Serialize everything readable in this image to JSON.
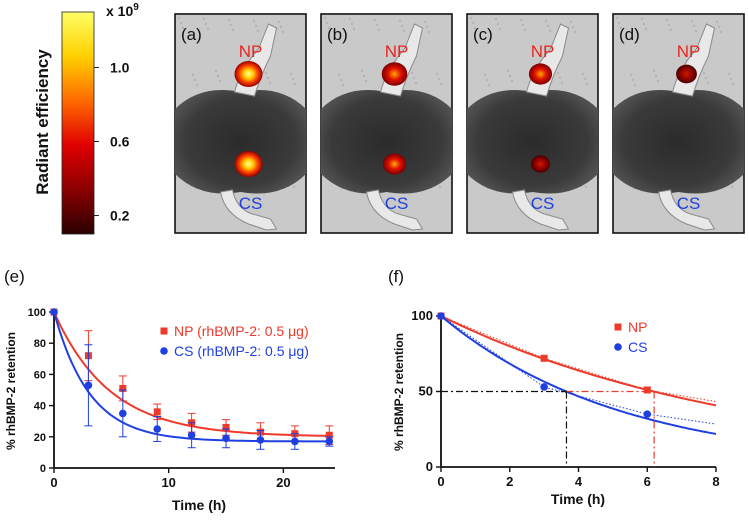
{
  "colorbar": {
    "title": "Radiant efficiency",
    "multiplier": "x 10",
    "exponent": "9",
    "ticks": [
      {
        "label": "1.0",
        "value": 1.0
      },
      {
        "label": "0.6",
        "value": 0.6
      },
      {
        "label": "0.2",
        "value": 0.2
      }
    ],
    "range": [
      0.1,
      1.3
    ],
    "colors": [
      "#2a0000",
      "#8b0000",
      "#e00000",
      "#ff6a00",
      "#ffd000",
      "#ffff66"
    ]
  },
  "images": [
    {
      "label": "(a)",
      "np_label": "NP",
      "cs_label": "CS",
      "np_spot": 1.0,
      "cs_spot": 1.0
    },
    {
      "label": "(b)",
      "np_label": "NP",
      "cs_label": "CS",
      "np_spot": 0.85,
      "cs_spot": 0.7
    },
    {
      "label": "(c)",
      "np_label": "NP",
      "cs_label": "CS",
      "np_spot": 0.7,
      "cs_spot": 0.45
    },
    {
      "label": "(d)",
      "np_label": "NP",
      "cs_label": "CS",
      "np_spot": 0.55,
      "cs_spot": 0.0
    }
  ],
  "label_colors": {
    "np": "#e8261f",
    "cs": "#1f3fe0"
  },
  "chart_data": [
    {
      "panel": "(e)",
      "type": "line",
      "xlabel": "Time (h)",
      "ylabel": "% rhBMP-2 retention",
      "xlim": [
        0,
        24.5
      ],
      "ylim": [
        0,
        100
      ],
      "xticks": [
        0,
        10,
        20
      ],
      "yticks": [
        0,
        20,
        40,
        60,
        80,
        100
      ],
      "legend_position": "top-right",
      "series": [
        {
          "name": "NP (rhBMP-2: 0.5 μg)",
          "color": "#ee3a2a",
          "marker": "square",
          "x": [
            0,
            3,
            6,
            9,
            12,
            15,
            18,
            21,
            24
          ],
          "y": [
            100,
            72,
            51,
            36,
            29,
            26,
            23,
            22,
            21
          ],
          "err": [
            0,
            16,
            8,
            5,
            6,
            5,
            6,
            5,
            6
          ],
          "fit": {
            "plateau": 20,
            "k": 0.205
          }
        },
        {
          "name": "CS (rhBMP-2: 0.5 μg)",
          "color": "#1f3fe0",
          "marker": "circle",
          "x": [
            0,
            3,
            6,
            9,
            12,
            15,
            18,
            21,
            24
          ],
          "y": [
            100,
            53,
            35,
            25,
            21,
            19,
            18,
            17,
            17
          ],
          "err": [
            0,
            26,
            15,
            8,
            8,
            6,
            6,
            5,
            3
          ],
          "fit": {
            "plateau": 17,
            "k": 0.32
          }
        }
      ]
    },
    {
      "panel": "(f)",
      "type": "line",
      "xlabel": "Time (h)",
      "ylabel": "% rhBMP-2 retention",
      "xlim": [
        0,
        8
      ],
      "ylim": [
        0,
        100
      ],
      "xticks": [
        0,
        2,
        4,
        6,
        8
      ],
      "yticks": [
        0,
        50,
        100
      ],
      "legend_position": "top-right",
      "series": [
        {
          "name": "NP",
          "color": "#ee3a2a",
          "marker": "square",
          "x": [
            0,
            3,
            6
          ],
          "y": [
            100,
            72,
            51
          ],
          "fit": {
            "k": 0.112
          },
          "half_life": 6.2
        },
        {
          "name": "CS",
          "color": "#1f3fe0",
          "marker": "circle",
          "x": [
            0,
            3,
            6
          ],
          "y": [
            100,
            53,
            35
          ],
          "fit": {
            "k": 0.19
          },
          "half_life": 3.65
        }
      ],
      "reference_y": 50
    }
  ]
}
